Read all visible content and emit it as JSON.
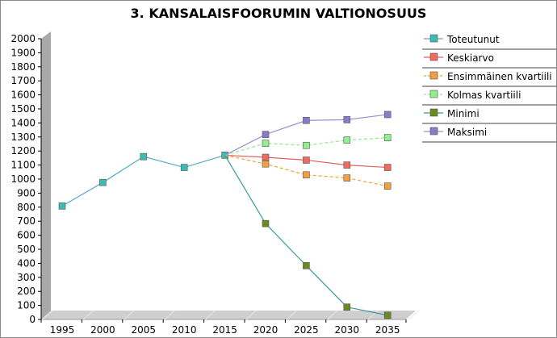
{
  "chart_data": {
    "type": "line",
    "title": "3. KANSALAISFOORUMIN VALTIONOSUUS",
    "xlabel": "",
    "ylabel": "",
    "ylim": [
      0,
      2000
    ],
    "y_ticks": [
      0,
      100,
      200,
      300,
      400,
      500,
      600,
      700,
      800,
      900,
      1000,
      1100,
      1200,
      1300,
      1400,
      1500,
      1600,
      1700,
      1800,
      1900,
      2000
    ],
    "categories": [
      "1995",
      "2000",
      "2005",
      "2010",
      "2015",
      "2020",
      "2025",
      "2030",
      "2035"
    ],
    "legend_position": "right",
    "grid": false,
    "series": [
      {
        "name": "Toteutunut",
        "color": "#5aa9c8",
        "marker_color": "#3cbcb0",
        "dashed": false,
        "values": [
          808,
          976,
          1160,
          1083,
          1170,
          null,
          null,
          null,
          null
        ]
      },
      {
        "name": "Keskiarvo",
        "color": "#e06060",
        "marker_color": "#f06a60",
        "dashed": false,
        "values": [
          null,
          null,
          null,
          null,
          1170,
          1155,
          1135,
          1100,
          1083
        ]
      },
      {
        "name": "Ensimmäinen kvartiili",
        "color": "#f0a030",
        "marker_color": "#f0a040",
        "dashed": true,
        "values": [
          null,
          null,
          null,
          null,
          1170,
          1108,
          1030,
          1008,
          950
        ]
      },
      {
        "name": "Kolmas kvartiili",
        "color": "#90e890",
        "marker_color": "#90f090",
        "dashed": true,
        "values": [
          null,
          null,
          null,
          null,
          1170,
          1255,
          1240,
          1278,
          1295
        ]
      },
      {
        "name": "Minimi",
        "color": "#3a9a9a",
        "marker_color": "#6a8a20",
        "dashed": false,
        "values": [
          null,
          null,
          null,
          null,
          1170,
          683,
          383,
          88,
          30
        ]
      },
      {
        "name": "Maksimi",
        "color": "#9a90d0",
        "marker_color": "#8a7ac8",
        "dashed": false,
        "values": [
          null,
          null,
          null,
          null,
          1170,
          1318,
          1418,
          1423,
          1460
        ]
      }
    ]
  }
}
